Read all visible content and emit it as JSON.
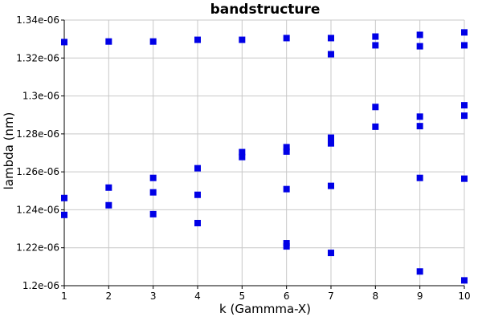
{
  "chart_data": {
    "type": "scatter",
    "title": "bandstructure",
    "xlabel": "k (Gammma-X)",
    "ylabel": "lambda (nm)",
    "xlim": [
      1,
      10
    ],
    "ylim": [
      1.2e-06,
      1.34e-06
    ],
    "grid": true,
    "x_ticks": [
      {
        "value": 1,
        "label": "1"
      },
      {
        "value": 2,
        "label": "2"
      },
      {
        "value": 3,
        "label": "3"
      },
      {
        "value": 4,
        "label": "4"
      },
      {
        "value": 5,
        "label": "5"
      },
      {
        "value": 6,
        "label": "6"
      },
      {
        "value": 7,
        "label": "7"
      },
      {
        "value": 8,
        "label": "8"
      },
      {
        "value": 9,
        "label": "9"
      },
      {
        "value": 10,
        "label": "10"
      }
    ],
    "y_ticks": [
      {
        "value": 1.2e-06,
        "label": "1.2e-06"
      },
      {
        "value": 1.22e-06,
        "label": "1.22e-06"
      },
      {
        "value": 1.24e-06,
        "label": "1.24e-06"
      },
      {
        "value": 1.26e-06,
        "label": "1.26e-06"
      },
      {
        "value": 1.28e-06,
        "label": "1.28e-06"
      },
      {
        "value": 1.3e-06,
        "label": "1.3e-06"
      },
      {
        "value": 1.32e-06,
        "label": "1.32e-06"
      },
      {
        "value": 1.34e-06,
        "label": "1.34e-06"
      }
    ],
    "marker_color": "#0000e6",
    "marker": "square",
    "series": [
      {
        "points": [
          {
            "x": 1,
            "y": 1.3284e-06
          },
          {
            "x": 1,
            "y": 1.2462e-06
          },
          {
            "x": 1,
            "y": 1.2373e-06
          },
          {
            "x": 2,
            "y": 1.3287e-06
          },
          {
            "x": 2,
            "y": 1.2517e-06
          },
          {
            "x": 2,
            "y": 1.2424e-06
          },
          {
            "x": 3,
            "y": 1.3287e-06
          },
          {
            "x": 3,
            "y": 1.2568e-06
          },
          {
            "x": 3,
            "y": 1.2492e-06
          },
          {
            "x": 3,
            "y": 1.2377e-06
          },
          {
            "x": 4,
            "y": 1.3296e-06
          },
          {
            "x": 4,
            "y": 1.2619e-06
          },
          {
            "x": 4,
            "y": 1.2479e-06
          },
          {
            "x": 4,
            "y": 1.233e-06
          },
          {
            "x": 5,
            "y": 1.3296e-06
          },
          {
            "x": 5,
            "y": 1.2704e-06
          },
          {
            "x": 5,
            "y": 1.2678e-06
          },
          {
            "x": 6,
            "y": 1.3305e-06
          },
          {
            "x": 6,
            "y": 1.273e-06
          },
          {
            "x": 6,
            "y": 1.2707e-06
          },
          {
            "x": 6,
            "y": 1.2509e-06
          },
          {
            "x": 6,
            "y": 1.2224e-06
          },
          {
            "x": 6,
            "y": 1.2207e-06
          },
          {
            "x": 7,
            "y": 1.3305e-06
          },
          {
            "x": 7,
            "y": 1.322e-06
          },
          {
            "x": 7,
            "y": 1.278e-06
          },
          {
            "x": 7,
            "y": 1.275e-06
          },
          {
            "x": 7,
            "y": 1.2526e-06
          },
          {
            "x": 7,
            "y": 1.2173e-06
          },
          {
            "x": 8,
            "y": 1.3313e-06
          },
          {
            "x": 8,
            "y": 1.3267e-06
          },
          {
            "x": 8,
            "y": 1.2942e-06
          },
          {
            "x": 8,
            "y": 1.2838e-06
          },
          {
            "x": 9,
            "y": 1.3322e-06
          },
          {
            "x": 9,
            "y": 1.3262e-06
          },
          {
            "x": 9,
            "y": 1.2891e-06
          },
          {
            "x": 9,
            "y": 1.2841e-06
          },
          {
            "x": 9,
            "y": 1.2568e-06
          },
          {
            "x": 9,
            "y": 1.2075e-06
          },
          {
            "x": 10,
            "y": 1.3335e-06
          },
          {
            "x": 10,
            "y": 1.3267e-06
          },
          {
            "x": 10,
            "y": 1.2951e-06
          },
          {
            "x": 10,
            "y": 1.2896e-06
          },
          {
            "x": 10,
            "y": 1.2564e-06
          },
          {
            "x": 10,
            "y": 1.2028e-06
          }
        ]
      }
    ]
  }
}
